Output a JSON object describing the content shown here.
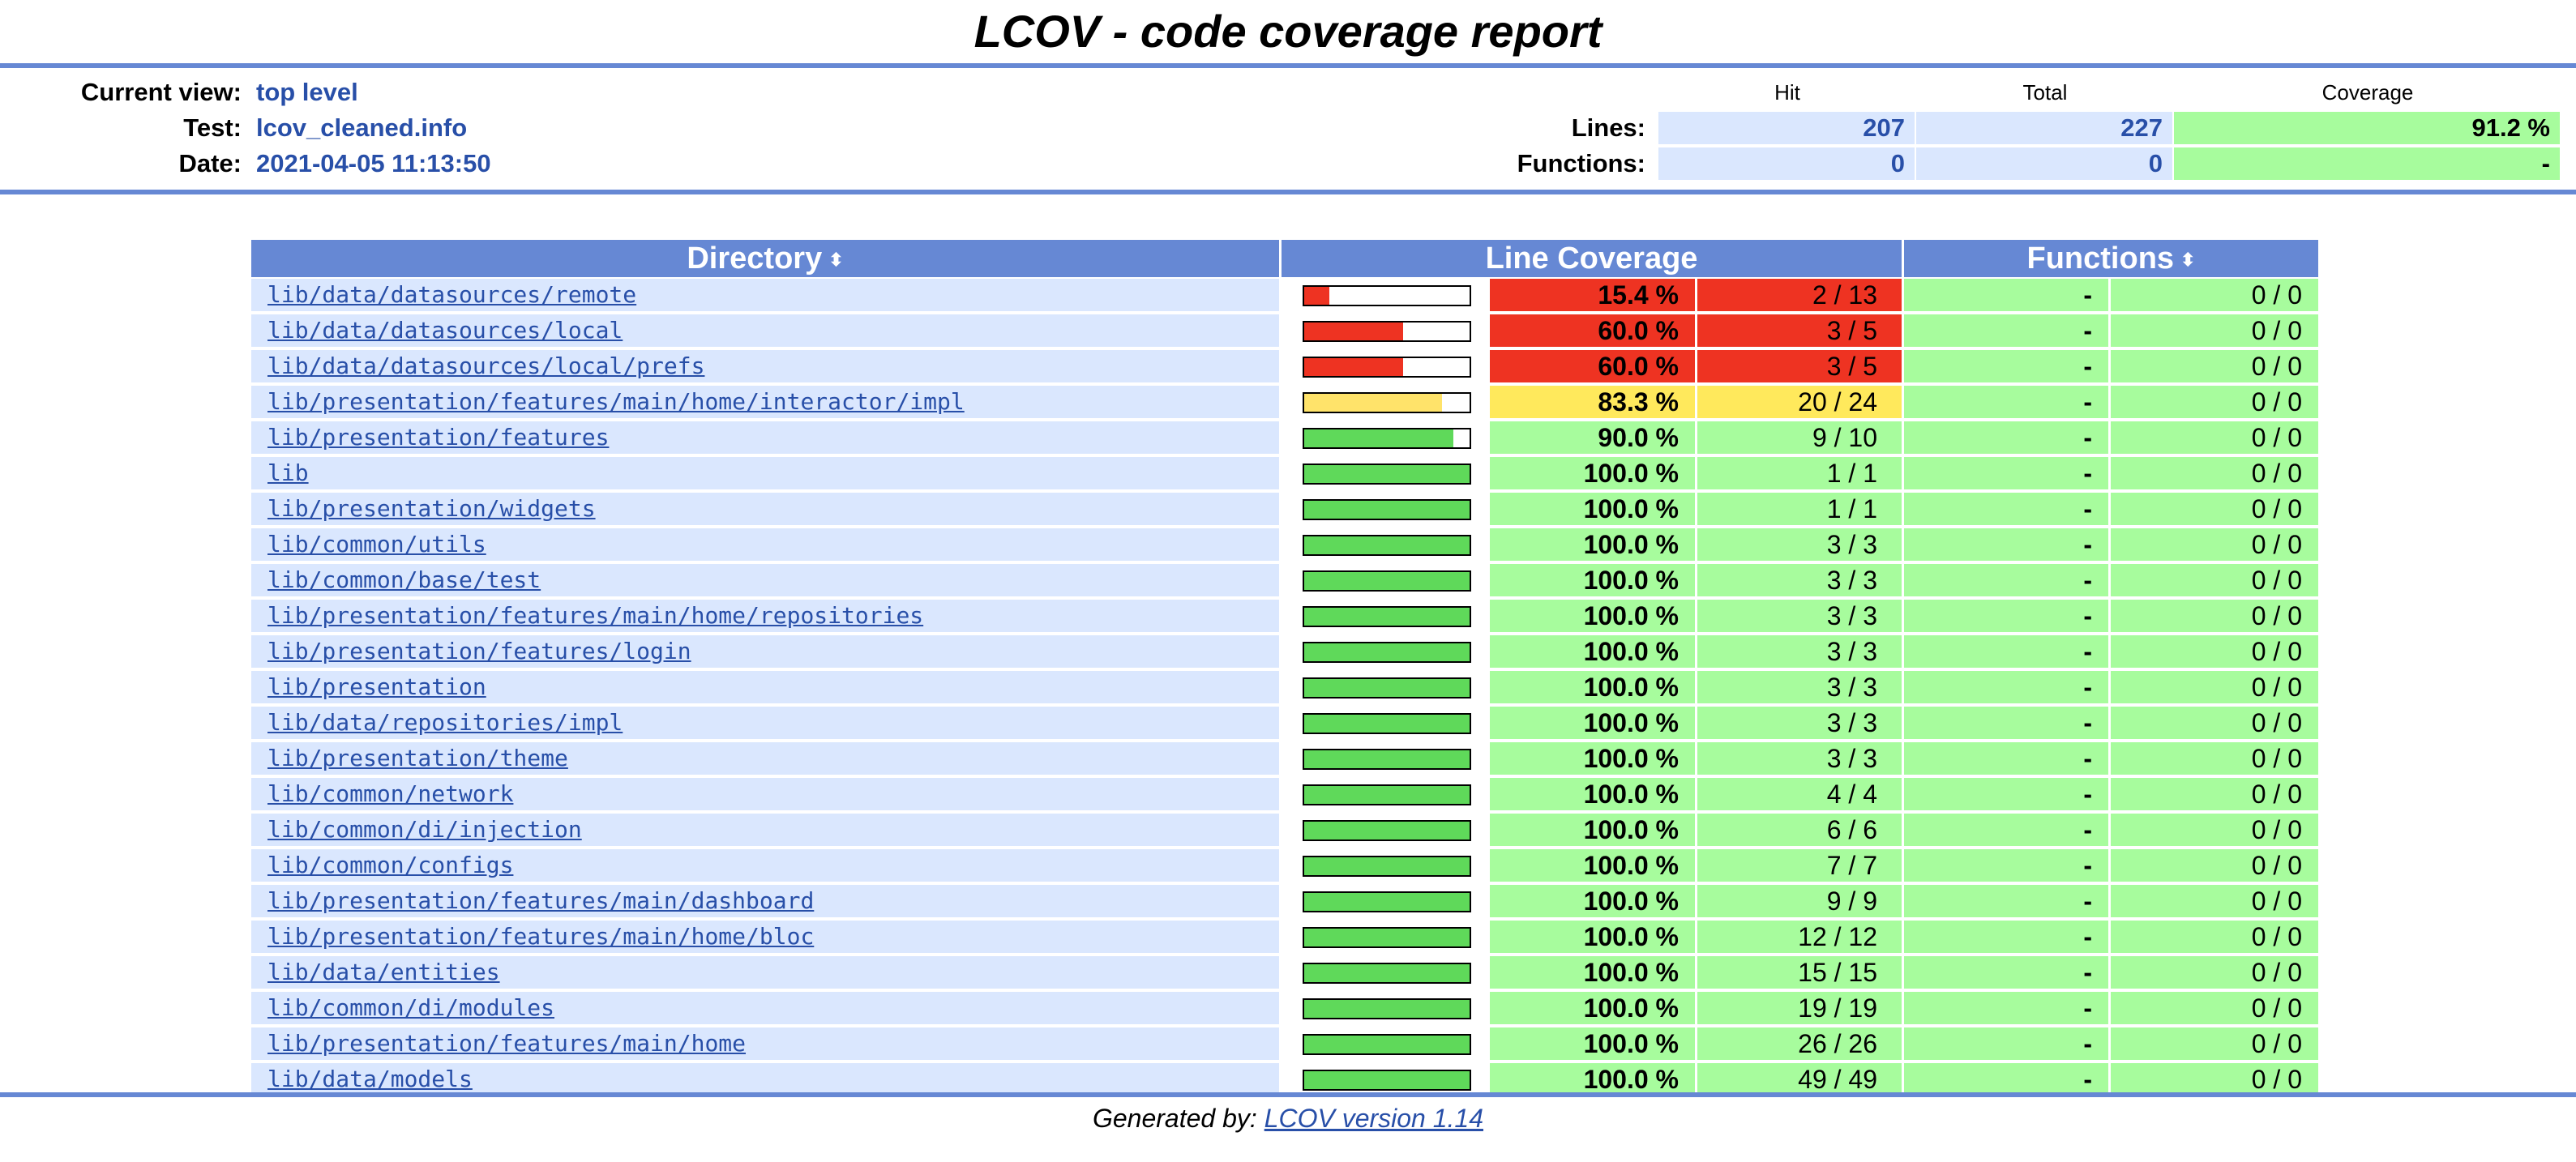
{
  "title": "LCOV - code coverage report",
  "header": {
    "current_view_label": "Current view:",
    "current_view_value": "top level",
    "test_label": "Test:",
    "test_value": "lcov_cleaned.info",
    "date_label": "Date:",
    "date_value": "2021-04-05 11:13:50",
    "col_hit": "Hit",
    "col_total": "Total",
    "col_coverage": "Coverage",
    "lines_label": "Lines:",
    "lines_hit": "207",
    "lines_total": "227",
    "lines_coverage": "91.2 %",
    "functions_label": "Functions:",
    "functions_hit": "0",
    "functions_total": "0",
    "functions_coverage": "-"
  },
  "table": {
    "col_directory": "Directory",
    "col_line_coverage": "Line Coverage",
    "col_functions": "Functions",
    "sort_icon": "⬍",
    "rows": [
      {
        "dir": "lib/data/datasources/remote",
        "pct": "15.4 %",
        "frac": "2 / 13",
        "level": "low",
        "fill": 0.154,
        "fpct": "-",
        "ffrac": "0 / 0"
      },
      {
        "dir": "lib/data/datasources/local",
        "pct": "60.0 %",
        "frac": "3 / 5",
        "level": "low",
        "fill": 0.6,
        "fpct": "-",
        "ffrac": "0 / 0"
      },
      {
        "dir": "lib/data/datasources/local/prefs",
        "pct": "60.0 %",
        "frac": "3 / 5",
        "level": "low",
        "fill": 0.6,
        "fpct": "-",
        "ffrac": "0 / 0"
      },
      {
        "dir": "lib/presentation/features/main/home/interactor/impl",
        "pct": "83.3 %",
        "frac": "20 / 24",
        "level": "med",
        "fill": 0.833,
        "fpct": "-",
        "ffrac": "0 / 0"
      },
      {
        "dir": "lib/presentation/features",
        "pct": "90.0 %",
        "frac": "9 / 10",
        "level": "hi",
        "fill": 0.9,
        "fpct": "-",
        "ffrac": "0 / 0"
      },
      {
        "dir": "lib",
        "pct": "100.0 %",
        "frac": "1 / 1",
        "level": "hi",
        "fill": 1,
        "fpct": "-",
        "ffrac": "0 / 0"
      },
      {
        "dir": "lib/presentation/widgets",
        "pct": "100.0 %",
        "frac": "1 / 1",
        "level": "hi",
        "fill": 1,
        "fpct": "-",
        "ffrac": "0 / 0"
      },
      {
        "dir": "lib/common/utils",
        "pct": "100.0 %",
        "frac": "3 / 3",
        "level": "hi",
        "fill": 1,
        "fpct": "-",
        "ffrac": "0 / 0"
      },
      {
        "dir": "lib/common/base/test",
        "pct": "100.0 %",
        "frac": "3 / 3",
        "level": "hi",
        "fill": 1,
        "fpct": "-",
        "ffrac": "0 / 0"
      },
      {
        "dir": "lib/presentation/features/main/home/repositories",
        "pct": "100.0 %",
        "frac": "3 / 3",
        "level": "hi",
        "fill": 1,
        "fpct": "-",
        "ffrac": "0 / 0"
      },
      {
        "dir": "lib/presentation/features/login",
        "pct": "100.0 %",
        "frac": "3 / 3",
        "level": "hi",
        "fill": 1,
        "fpct": "-",
        "ffrac": "0 / 0"
      },
      {
        "dir": "lib/presentation",
        "pct": "100.0 %",
        "frac": "3 / 3",
        "level": "hi",
        "fill": 1,
        "fpct": "-",
        "ffrac": "0 / 0"
      },
      {
        "dir": "lib/data/repositories/impl",
        "pct": "100.0 %",
        "frac": "3 / 3",
        "level": "hi",
        "fill": 1,
        "fpct": "-",
        "ffrac": "0 / 0"
      },
      {
        "dir": "lib/presentation/theme",
        "pct": "100.0 %",
        "frac": "3 / 3",
        "level": "hi",
        "fill": 1,
        "fpct": "-",
        "ffrac": "0 / 0"
      },
      {
        "dir": "lib/common/network",
        "pct": "100.0 %",
        "frac": "4 / 4",
        "level": "hi",
        "fill": 1,
        "fpct": "-",
        "ffrac": "0 / 0"
      },
      {
        "dir": "lib/common/di/injection",
        "pct": "100.0 %",
        "frac": "6 / 6",
        "level": "hi",
        "fill": 1,
        "fpct": "-",
        "ffrac": "0 / 0"
      },
      {
        "dir": "lib/common/configs",
        "pct": "100.0 %",
        "frac": "7 / 7",
        "level": "hi",
        "fill": 1,
        "fpct": "-",
        "ffrac": "0 / 0"
      },
      {
        "dir": "lib/presentation/features/main/dashboard",
        "pct": "100.0 %",
        "frac": "9 / 9",
        "level": "hi",
        "fill": 1,
        "fpct": "-",
        "ffrac": "0 / 0"
      },
      {
        "dir": "lib/presentation/features/main/home/bloc",
        "pct": "100.0 %",
        "frac": "12 / 12",
        "level": "hi",
        "fill": 1,
        "fpct": "-",
        "ffrac": "0 / 0"
      },
      {
        "dir": "lib/data/entities",
        "pct": "100.0 %",
        "frac": "15 / 15",
        "level": "hi",
        "fill": 1,
        "fpct": "-",
        "ffrac": "0 / 0"
      },
      {
        "dir": "lib/common/di/modules",
        "pct": "100.0 %",
        "frac": "19 / 19",
        "level": "hi",
        "fill": 1,
        "fpct": "-",
        "ffrac": "0 / 0"
      },
      {
        "dir": "lib/presentation/features/main/home",
        "pct": "100.0 %",
        "frac": "26 / 26",
        "level": "hi",
        "fill": 1,
        "fpct": "-",
        "ffrac": "0 / 0"
      },
      {
        "dir": "lib/data/models",
        "pct": "100.0 %",
        "frac": "49 / 49",
        "level": "hi",
        "fill": 1,
        "fpct": "-",
        "ffrac": "0 / 0"
      }
    ]
  },
  "colors": {
    "low": "#ee3322",
    "med": "#ffe95c",
    "hi": "#a7fc9d",
    "bar_low": "#ee3322",
    "bar_med": "#ffe36a",
    "bar_hi": "#5fd95a",
    "accent": "#6688d4"
  },
  "footer": {
    "prefix": "Generated by: ",
    "link": "LCOV version 1.14"
  }
}
